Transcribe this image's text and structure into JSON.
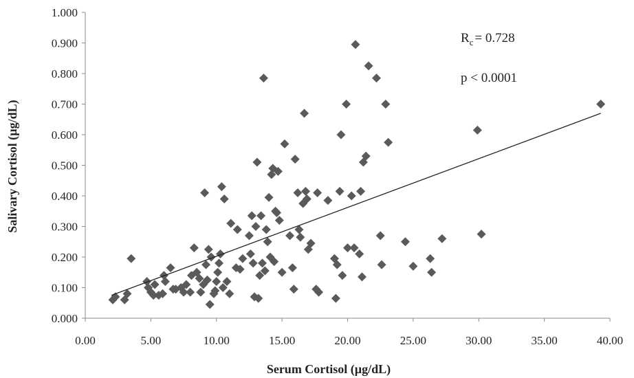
{
  "chart_data": {
    "type": "scatter",
    "title": "",
    "xlabel": "Serum Cortisol (µg/dL)",
    "ylabel": "Salivary Cortisol (µg/dL)",
    "xlim": [
      0,
      40
    ],
    "ylim": [
      0,
      1
    ],
    "x_ticks": [
      "0.00",
      "5.00",
      "10.00",
      "15.00",
      "20.00",
      "25.00",
      "30.00",
      "35.00",
      "40.00"
    ],
    "y_ticks": [
      "0.000",
      "0.100",
      "0.200",
      "0.300",
      "0.400",
      "0.500",
      "0.600",
      "0.700",
      "0.800",
      "0.900",
      "1.000"
    ],
    "grid": false,
    "marker": "diamond",
    "marker_color": "#5a5a5a",
    "annotations": {
      "rc_label": "R",
      "rc_sub": "c",
      "rc_value": "= 0.728",
      "p_text": "p < 0.0001"
    },
    "trendline": {
      "x": [
        2.0,
        39.3
      ],
      "y": [
        0.075,
        0.67
      ]
    },
    "points": [
      [
        2.1,
        0.06
      ],
      [
        2.3,
        0.07
      ],
      [
        3.0,
        0.06
      ],
      [
        3.2,
        0.08
      ],
      [
        3.5,
        0.195
      ],
      [
        4.7,
        0.12
      ],
      [
        4.8,
        0.1
      ],
      [
        5.0,
        0.085
      ],
      [
        5.2,
        0.075
      ],
      [
        5.3,
        0.11
      ],
      [
        5.6,
        0.075
      ],
      [
        5.9,
        0.08
      ],
      [
        6.0,
        0.14
      ],
      [
        6.1,
        0.12
      ],
      [
        6.5,
        0.165
      ],
      [
        6.7,
        0.095
      ],
      [
        6.9,
        0.095
      ],
      [
        7.3,
        0.1
      ],
      [
        7.5,
        0.085
      ],
      [
        7.7,
        0.11
      ],
      [
        8.0,
        0.085
      ],
      [
        8.1,
        0.14
      ],
      [
        8.3,
        0.23
      ],
      [
        8.5,
        0.15
      ],
      [
        8.7,
        0.13
      ],
      [
        8.8,
        0.085
      ],
      [
        9.0,
        0.11
      ],
      [
        9.1,
        0.41
      ],
      [
        9.2,
        0.175
      ],
      [
        9.3,
        0.125
      ],
      [
        9.4,
        0.225
      ],
      [
        9.5,
        0.045
      ],
      [
        9.6,
        0.2
      ],
      [
        9.8,
        0.08
      ],
      [
        9.9,
        0.09
      ],
      [
        10.0,
        0.12
      ],
      [
        10.1,
        0.15
      ],
      [
        10.2,
        0.18
      ],
      [
        10.3,
        0.21
      ],
      [
        10.4,
        0.43
      ],
      [
        10.5,
        0.1
      ],
      [
        10.6,
        0.39
      ],
      [
        10.8,
        0.12
      ],
      [
        11.0,
        0.08
      ],
      [
        11.1,
        0.31
      ],
      [
        11.5,
        0.165
      ],
      [
        11.6,
        0.29
      ],
      [
        11.8,
        0.16
      ],
      [
        12.0,
        0.195
      ],
      [
        12.5,
        0.27
      ],
      [
        12.6,
        0.21
      ],
      [
        12.7,
        0.335
      ],
      [
        12.8,
        0.18
      ],
      [
        12.9,
        0.07
      ],
      [
        13.0,
        0.3
      ],
      [
        13.1,
        0.51
      ],
      [
        13.2,
        0.065
      ],
      [
        13.3,
        0.14
      ],
      [
        13.4,
        0.335
      ],
      [
        13.5,
        0.18
      ],
      [
        13.6,
        0.785
      ],
      [
        13.7,
        0.155
      ],
      [
        13.8,
        0.29
      ],
      [
        13.9,
        0.25
      ],
      [
        14.0,
        0.395
      ],
      [
        14.1,
        0.2
      ],
      [
        14.2,
        0.47
      ],
      [
        14.3,
        0.49
      ],
      [
        14.4,
        0.185
      ],
      [
        14.5,
        0.35
      ],
      [
        14.6,
        0.345
      ],
      [
        14.7,
        0.48
      ],
      [
        14.8,
        0.32
      ],
      [
        15.0,
        0.15
      ],
      [
        15.2,
        0.57
      ],
      [
        15.6,
        0.27
      ],
      [
        15.8,
        0.165
      ],
      [
        15.9,
        0.095
      ],
      [
        16.0,
        0.52
      ],
      [
        16.2,
        0.41
      ],
      [
        16.3,
        0.29
      ],
      [
        16.4,
        0.265
      ],
      [
        16.6,
        0.375
      ],
      [
        16.7,
        0.67
      ],
      [
        16.8,
        0.415
      ],
      [
        16.9,
        0.39
      ],
      [
        17.0,
        0.225
      ],
      [
        17.2,
        0.245
      ],
      [
        17.6,
        0.095
      ],
      [
        17.7,
        0.41
      ],
      [
        17.8,
        0.085
      ],
      [
        18.5,
        0.385
      ],
      [
        19.0,
        0.195
      ],
      [
        19.1,
        0.065
      ],
      [
        19.2,
        0.175
      ],
      [
        19.4,
        0.415
      ],
      [
        19.5,
        0.6
      ],
      [
        19.6,
        0.14
      ],
      [
        19.9,
        0.7
      ],
      [
        20.0,
        0.23
      ],
      [
        20.3,
        0.4
      ],
      [
        20.5,
        0.23
      ],
      [
        20.6,
        0.895
      ],
      [
        20.9,
        0.21
      ],
      [
        21.0,
        0.415
      ],
      [
        21.1,
        0.135
      ],
      [
        21.2,
        0.51
      ],
      [
        21.4,
        0.53
      ],
      [
        21.6,
        0.825
      ],
      [
        22.2,
        0.785
      ],
      [
        22.5,
        0.27
      ],
      [
        22.6,
        0.175
      ],
      [
        22.9,
        0.7
      ],
      [
        23.1,
        0.575
      ],
      [
        24.4,
        0.25
      ],
      [
        25.0,
        0.17
      ],
      [
        26.3,
        0.195
      ],
      [
        26.4,
        0.15
      ],
      [
        27.2,
        0.26
      ],
      [
        29.9,
        0.615
      ],
      [
        30.2,
        0.275
      ],
      [
        39.3,
        0.7
      ]
    ]
  }
}
